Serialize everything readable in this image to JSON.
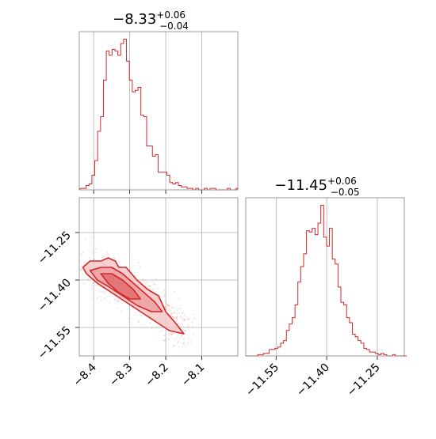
{
  "chart_data": [
    {
      "type": "histogram",
      "panel": "top-left",
      "title": {
        "value": "−8.33",
        "plus": "+0.06",
        "minus": "−0.04"
      },
      "xlim": [
        -8.44,
        -8.0
      ],
      "xticks": [
        -8.4,
        -8.3,
        -8.2,
        -8.1
      ],
      "grid": true,
      "bins": {
        "start": -8.437,
        "width": 0.008,
        "heights": [
          1,
          1,
          3,
          4,
          10,
          20,
          40,
          50,
          75,
          95,
          92,
          96,
          95,
          92,
          100,
          103,
          88,
          75,
          67,
          68,
          70,
          51,
          50,
          30,
          30,
          23,
          24,
          12,
          12,
          12,
          10,
          5,
          4,
          5,
          3,
          2,
          2,
          1,
          1,
          0,
          1,
          0,
          0,
          1,
          0,
          1,
          1,
          0,
          0,
          0,
          0,
          1,
          0,
          0,
          1
        ]
      },
      "color": "#d62728"
    },
    {
      "type": "scatter",
      "panel": "bottom-left",
      "xlim": [
        -8.44,
        -8.0
      ],
      "ylim": [
        -11.64,
        -11.14
      ],
      "xticks": [
        -8.4,
        -8.3,
        -8.2,
        -8.1
      ],
      "yticks": [
        -11.25,
        -11.4,
        -11.55
      ],
      "ytick_labels": [
        "−11.25",
        "−11.40",
        "−11.55"
      ],
      "xtick_labels": [
        "−8.4",
        "−8.3",
        "−8.2",
        "−8.1"
      ],
      "grid": true,
      "samples_ridge": [
        {
          "x": -8.43,
          "y": -11.36
        },
        {
          "x": -8.38,
          "y": -11.4
        },
        {
          "x": -8.33,
          "y": -11.43
        },
        {
          "x": -8.28,
          "y": -11.47
        },
        {
          "x": -8.23,
          "y": -11.5
        },
        {
          "x": -8.18,
          "y": -11.55
        },
        {
          "x": -8.15,
          "y": -11.58
        }
      ],
      "contours": [
        {
          "level": "outer",
          "points": [
            [
              -8.43,
              -11.36
            ],
            [
              -8.41,
              -11.34
            ],
            [
              -8.38,
              -11.34
            ],
            [
              -8.36,
              -11.33
            ],
            [
              -8.34,
              -11.34
            ],
            [
              -8.33,
              -11.36
            ],
            [
              -8.31,
              -11.36
            ],
            [
              -8.28,
              -11.4
            ],
            [
              -8.25,
              -11.43
            ],
            [
              -8.22,
              -11.45
            ],
            [
              -8.2,
              -11.5
            ],
            [
              -8.17,
              -11.54
            ],
            [
              -8.15,
              -11.57
            ],
            [
              -8.19,
              -11.56
            ],
            [
              -8.23,
              -11.53
            ],
            [
              -8.27,
              -11.5
            ],
            [
              -8.31,
              -11.47
            ],
            [
              -8.35,
              -11.44
            ],
            [
              -8.39,
              -11.41
            ],
            [
              -8.42,
              -11.38
            ]
          ]
        },
        {
          "level": "middle",
          "points": [
            [
              -8.41,
              -11.37
            ],
            [
              -8.38,
              -11.36
            ],
            [
              -8.35,
              -11.36
            ],
            [
              -8.32,
              -11.38
            ],
            [
              -8.29,
              -11.41
            ],
            [
              -8.26,
              -11.44
            ],
            [
              -8.23,
              -11.47
            ],
            [
              -8.21,
              -11.5
            ],
            [
              -8.24,
              -11.5
            ],
            [
              -8.28,
              -11.48
            ],
            [
              -8.32,
              -11.45
            ],
            [
              -8.36,
              -11.42
            ],
            [
              -8.39,
              -11.4
            ]
          ]
        },
        {
          "level": "inner",
          "points": [
            [
              -8.38,
              -11.38
            ],
            [
              -8.35,
              -11.38
            ],
            [
              -8.32,
              -11.4
            ],
            [
              -8.29,
              -11.43
            ],
            [
              -8.27,
              -11.46
            ],
            [
              -8.3,
              -11.46
            ],
            [
              -8.33,
              -11.44
            ],
            [
              -8.36,
              -11.41
            ]
          ]
        }
      ],
      "color": "#d62728"
    },
    {
      "type": "histogram",
      "panel": "bottom-right",
      "title": {
        "value": "−11.45",
        "plus": "+0.06",
        "minus": "−0.05"
      },
      "xlim": [
        -11.64,
        -11.17
      ],
      "xticks": [
        -11.55,
        -11.4,
        -11.25
      ],
      "xtick_labels": [
        "−11.55",
        "−11.40",
        "−11.25"
      ],
      "grid": true,
      "bins": {
        "start": -11.63,
        "width": 0.0085,
        "heights": [
          0,
          0,
          0,
          1,
          1,
          2,
          2,
          5,
          5,
          6,
          7,
          10,
          12,
          20,
          25,
          30,
          40,
          58,
          70,
          80,
          98,
          97,
          100,
          95,
          104,
          118,
          93,
          86,
          100,
          76,
          72,
          54,
          42,
          40,
          30,
          26,
          17,
          15,
          12,
          10,
          6,
          5,
          3,
          3,
          2,
          1,
          2,
          1,
          0,
          0,
          1,
          0,
          0,
          0,
          0,
          0
        ]
      },
      "color": "#d62728"
    }
  ]
}
